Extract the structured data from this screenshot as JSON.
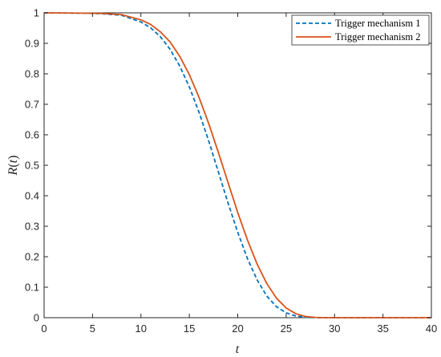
{
  "chart_data": {
    "type": "line",
    "xlabel": "t",
    "ylabel_main": "R",
    "ylabel_paren_open": "(",
    "ylabel_var": "t",
    "ylabel_paren_close": ")",
    "xlim": [
      0,
      40
    ],
    "ylim": [
      0,
      1
    ],
    "xticks": [
      "0",
      "5",
      "10",
      "15",
      "20",
      "25",
      "30",
      "35",
      "40"
    ],
    "yticks": [
      "0",
      "0.1",
      "0.2",
      "0.3",
      "0.4",
      "0.5",
      "0.6",
      "0.7",
      "0.8",
      "0.9",
      "1"
    ],
    "grid": false,
    "legend_position": "top-right",
    "series": [
      {
        "name": "Trigger mechanism 1",
        "color": "#0072BD",
        "style": "dashed",
        "x": [
          0,
          4,
          6,
          8,
          10,
          11,
          12,
          13,
          14,
          15,
          16,
          17,
          18,
          19,
          20,
          21,
          22,
          23,
          24,
          25,
          26,
          27,
          28,
          29,
          30,
          32,
          34,
          36,
          38,
          40
        ],
        "y": [
          1.0,
          0.999,
          0.997,
          0.992,
          0.97,
          0.951,
          0.922,
          0.881,
          0.826,
          0.757,
          0.674,
          0.58,
          0.478,
          0.376,
          0.28,
          0.194,
          0.124,
          0.071,
          0.036,
          0.016,
          0.0055,
          0.0015,
          0.0003,
          0.0,
          0.0,
          0.0,
          0.0,
          0.0,
          0.0,
          0.0
        ]
      },
      {
        "name": "Trigger mechanism 2",
        "color": "#D95319",
        "style": "solid",
        "x": [
          0,
          4,
          6,
          8,
          10,
          11,
          12,
          13,
          14,
          15,
          16,
          17,
          18,
          19,
          20,
          21,
          22,
          23,
          24,
          25,
          26,
          27,
          28,
          29,
          30,
          32,
          34,
          36,
          38,
          40
        ],
        "y": [
          1.0,
          0.999,
          0.998,
          0.994,
          0.977,
          0.962,
          0.938,
          0.905,
          0.858,
          0.797,
          0.723,
          0.637,
          0.542,
          0.443,
          0.345,
          0.255,
          0.176,
          0.112,
          0.064,
          0.032,
          0.013,
          0.004,
          0.001,
          0.0,
          0.0,
          0.0,
          0.0,
          0.0,
          0.0,
          0.0
        ]
      }
    ]
  }
}
